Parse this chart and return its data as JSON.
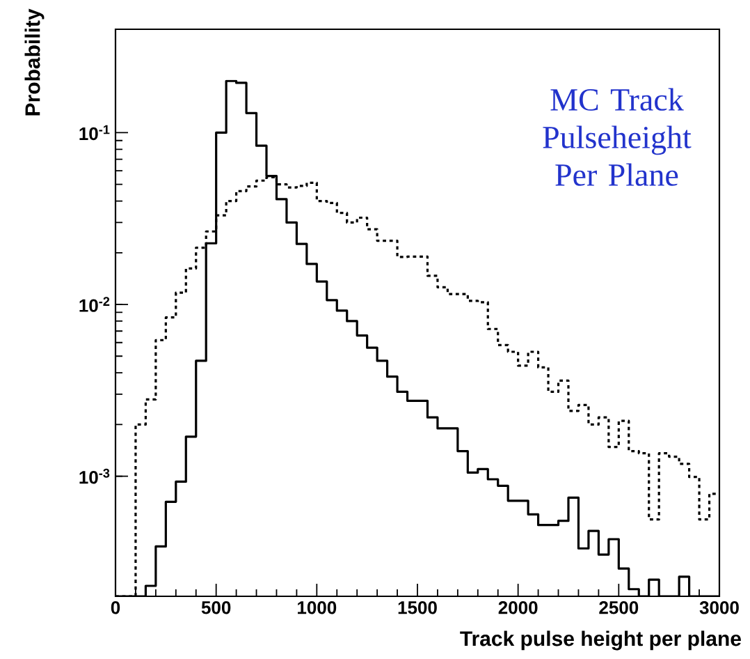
{
  "chart_data": {
    "type": "histogram",
    "xlabel": "Track pulse height per plane",
    "ylabel": "Probability",
    "annotations": [
      "MC Track Pulseheight Per Plane"
    ],
    "log": "y",
    "xlim": [
      0,
      3000
    ],
    "xticks": [
      0,
      500,
      1000,
      1500,
      2000,
      2500,
      3000
    ],
    "ylim": [
      0.0002,
      0.4
    ],
    "yticks": [
      {
        "value": 0.001,
        "label": "10$^{-3}$"
      },
      {
        "value": 0.01,
        "label": "10$^{-2}$"
      },
      {
        "value": 0.1,
        "label": "10$^{-1}$"
      }
    ],
    "bins": [
      0,
      50,
      100,
      150,
      200,
      250,
      300,
      350,
      400,
      450,
      500,
      550,
      600,
      650,
      700,
      750,
      800,
      850,
      900,
      950,
      1000,
      1050,
      1100,
      1150,
      1200,
      1250,
      1300,
      1350,
      1400,
      1450,
      1500,
      1550,
      1600,
      1650,
      1700,
      1750,
      1800,
      1850,
      1900,
      1950,
      2000,
      2050,
      2100,
      2150,
      2200,
      2250,
      2300,
      2350,
      2400,
      2450,
      2500,
      2550,
      2600,
      2650,
      2700,
      2750,
      2800,
      2850,
      2900,
      2950,
      3000
    ],
    "series": [
      {
        "color": "#000000",
        "line_style": "solid",
        "values": [
          null,
          null,
          null,
          0.00023,
          0.00039,
          0.00071,
          0.00093,
          0.0017,
          0.0047,
          0.0227,
          0.1,
          0.2,
          0.195,
          0.13,
          0.084,
          0.056,
          0.041,
          0.03,
          0.0225,
          0.0172,
          0.0136,
          0.0106,
          0.0092,
          0.008,
          0.0066,
          0.0056,
          0.0047,
          0.0038,
          0.0031,
          0.00275,
          0.00275,
          0.0022,
          0.0019,
          0.0019,
          0.0014,
          0.00105,
          0.0011,
          0.00096,
          0.00088,
          0.00072,
          0.00072,
          0.0006,
          0.00052,
          0.00052,
          0.00055,
          0.00075,
          0.00038,
          0.00048,
          0.00035,
          0.00043,
          0.00029,
          0.00022,
          null,
          0.00025,
          null,
          null,
          0.00026,
          null,
          null,
          null
        ]
      },
      {
        "color": "#000000",
        "line_style": "dotted",
        "values": [
          null,
          null,
          0.002,
          0.0028,
          0.0062,
          0.0084,
          0.0117,
          0.0162,
          0.0214,
          0.0266,
          0.033,
          0.04,
          0.0457,
          0.0486,
          0.0526,
          0.055,
          0.05,
          0.048,
          0.049,
          0.0511,
          0.04,
          0.039,
          0.0341,
          0.03,
          0.032,
          0.0274,
          0.0235,
          0.0235,
          0.0189,
          0.019,
          0.019,
          0.0147,
          0.0126,
          0.0115,
          0.0115,
          0.0105,
          0.0103,
          0.0072,
          0.0058,
          0.0053,
          0.0044,
          0.0053,
          0.0043,
          0.0031,
          0.0036,
          0.0024,
          0.0026,
          0.002,
          0.0022,
          0.00148,
          0.0021,
          0.0014,
          0.00136,
          0.00056,
          0.00136,
          0.0013,
          0.00118,
          0.00099,
          0.00056,
          0.00079
        ]
      }
    ]
  }
}
